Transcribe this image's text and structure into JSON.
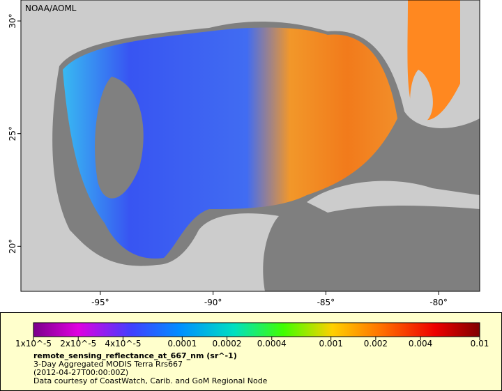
{
  "map": {
    "title": "NOAA/AOML",
    "xlim": [
      -98.52,
      -78.18
    ],
    "ylim": [
      18.0,
      30.93
    ],
    "xticks": [
      {
        "value": -95,
        "label": "-95°"
      },
      {
        "value": -90,
        "label": "-90°"
      },
      {
        "value": -85,
        "label": "-85°"
      },
      {
        "value": -80,
        "label": "-80°"
      }
    ],
    "yticks": [
      {
        "value": 20,
        "label": "20°"
      },
      {
        "value": 25,
        "label": "25°"
      },
      {
        "value": 30,
        "label": "30°"
      }
    ]
  },
  "colorbar": {
    "lim": [
      1e-05,
      0.01
    ],
    "log": true,
    "ticks": [
      {
        "value": 1e-05,
        "label": "1x10^-5"
      },
      {
        "value": 2e-05,
        "label": "2x10^-5"
      },
      {
        "value": 4e-05,
        "label": "4x10^-5"
      },
      0.0001,
      0.0002,
      0.0004,
      0.001,
      0.002,
      0.004,
      0.01
    ]
  },
  "legend": {
    "variable": "remote_sensing_reflectance_at_667_nm (sr^-1)",
    "dataset": "3-Day Aggregated MODIS Terra Rrs667",
    "time": "(2012-04-27T00:00:00Z)",
    "credit": "Data courtesy of CoastWatch, Carib. and GoM Regional Node"
  }
}
